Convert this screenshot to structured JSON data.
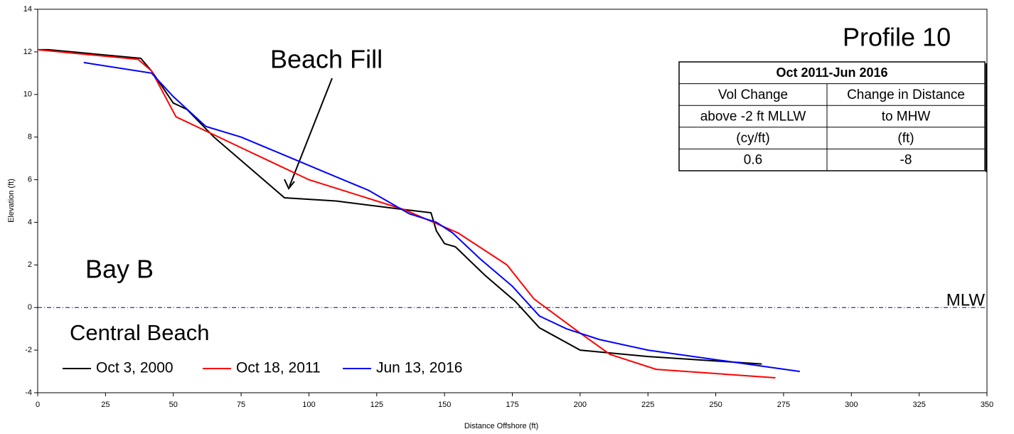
{
  "chart_data": {
    "type": "line",
    "x_label": "Distance Offshore (ft)",
    "y_label": "Elevation (ft)",
    "xlim": [
      0,
      350
    ],
    "xticks": [
      0,
      25,
      50,
      75,
      100,
      125,
      150,
      175,
      200,
      225,
      250,
      275,
      300,
      325,
      350
    ],
    "ylim": [
      -4,
      14
    ],
    "yticks": [
      -4,
      -2,
      0,
      2,
      4,
      6,
      8,
      10,
      12,
      14
    ],
    "series": [
      {
        "name": "Oct 3, 2000",
        "color": "#000000",
        "x": [
          0,
          4,
          38,
          42,
          50,
          55,
          65,
          91,
          110,
          135,
          145,
          147,
          150,
          154,
          165,
          176,
          185,
          200,
          225,
          267
        ],
        "values": [
          12.1,
          12.1,
          11.7,
          11.1,
          9.6,
          9.3,
          8.0,
          5.15,
          5.0,
          4.6,
          4.45,
          3.6,
          3.0,
          2.85,
          1.5,
          0.3,
          -0.95,
          -2.0,
          -2.3,
          -2.65
        ]
      },
      {
        "name": "Oct 18, 2011",
        "color": "#ff0000",
        "x": [
          0,
          37,
          42,
          51,
          75,
          100,
          135,
          155,
          173,
          183,
          200,
          211,
          228,
          272
        ],
        "values": [
          12.1,
          11.65,
          11.1,
          8.95,
          7.5,
          6.0,
          4.6,
          3.5,
          2.0,
          0.4,
          -1.2,
          -2.2,
          -2.9,
          -3.3
        ]
      },
      {
        "name": "Jun 13, 2016",
        "color": "#0000ff",
        "x": [
          17,
          42,
          50,
          62,
          75,
          90,
          105,
          122,
          137,
          147,
          153,
          163,
          175,
          185,
          195,
          207,
          225,
          281
        ],
        "values": [
          11.5,
          11.0,
          9.9,
          8.5,
          8.0,
          7.2,
          6.4,
          5.5,
          4.4,
          4.0,
          3.5,
          2.3,
          1.0,
          -0.4,
          -1.0,
          -1.5,
          -2.0,
          -3.0
        ]
      }
    ],
    "reference_line": {
      "y": 0,
      "label": "MLW",
      "color": "#00008b"
    },
    "annotations": [
      "Profile 10",
      "Beach Fill",
      "Bay B",
      "Central Beach"
    ],
    "table": {
      "title": "Oct 2011-Jun 2016",
      "rows": [
        [
          "Vol Change",
          "Change in Distance"
        ],
        [
          "above -2 ft MLLW",
          "to MHW"
        ],
        [
          "(cy/ft)",
          "(ft)"
        ],
        [
          "0.6",
          "-8"
        ]
      ]
    }
  }
}
